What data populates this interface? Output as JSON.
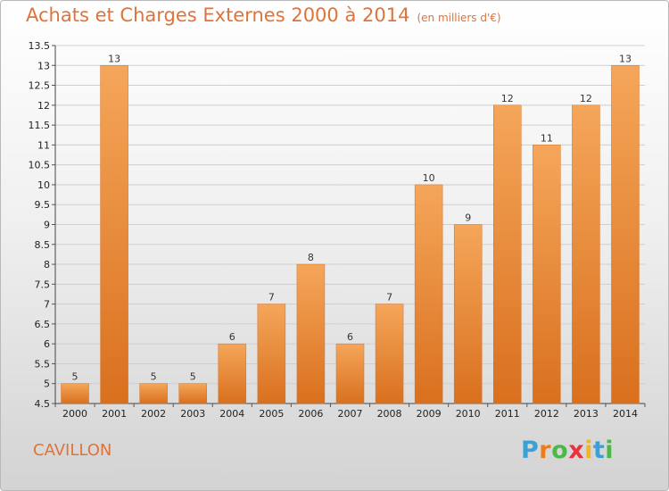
{
  "header": {
    "title": "Achats et Charges Externes 2000 à 2014",
    "subtitle": "(en milliers d'€)"
  },
  "footer": {
    "city": "CAVILLON",
    "logo_text": "Proxiti",
    "logo_colors": [
      "#3aa0d8",
      "#ee7c1b",
      "#4db848",
      "#e8333c",
      "#f5b51b",
      "#3aa0d8",
      "#4db848"
    ]
  },
  "colors": {
    "bar_light": "#f5a65a",
    "bar_dark": "#d9701e",
    "grid": "#cfcfcf",
    "accent": "#e0733a"
  },
  "chart_data": {
    "type": "bar",
    "categories": [
      "2000",
      "2001",
      "2002",
      "2003",
      "2004",
      "2005",
      "2006",
      "2007",
      "2008",
      "2009",
      "2010",
      "2011",
      "2012",
      "2013",
      "2014"
    ],
    "values": [
      5,
      13,
      5,
      5,
      6,
      7,
      8,
      6,
      7,
      10,
      9,
      12,
      11,
      12,
      13
    ],
    "data_labels": [
      "5",
      "13",
      "5",
      "5",
      "6",
      "7",
      "8",
      "6",
      "7",
      "10",
      "9",
      "12",
      "11",
      "12",
      "13"
    ],
    "ylim": [
      4.5,
      13.5
    ],
    "yticks": [
      4.5,
      5,
      5.5,
      6,
      6.5,
      7,
      7.5,
      8,
      8.5,
      9,
      9.5,
      10,
      10.5,
      11,
      11.5,
      12,
      12.5,
      13,
      13.5
    ],
    "ytick_labels": [
      "4.5",
      "5",
      "5.5",
      "6",
      "6.5",
      "7",
      "7.5",
      "8",
      "8.5",
      "9",
      "9.5",
      "10",
      "10.5",
      "11",
      "11.5",
      "12",
      "12.5",
      "13",
      "13.5"
    ],
    "grid": true,
    "xlabel": "",
    "ylabel": ""
  }
}
